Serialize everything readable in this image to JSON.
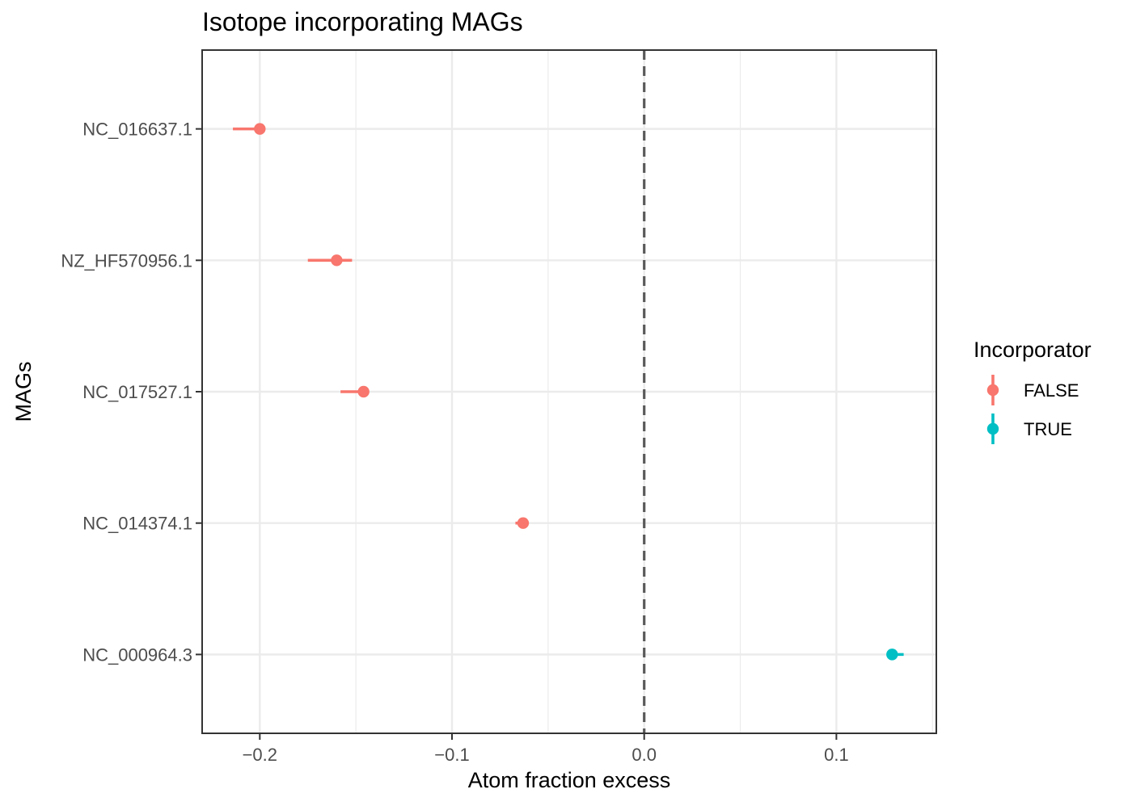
{
  "chart_data": {
    "type": "scatter",
    "title": "Isotope incorporating MAGs",
    "xlabel": "Atom fraction excess",
    "ylabel": "MAGs",
    "xlim": [
      -0.23,
      0.152
    ],
    "x_ticks": [
      -0.2,
      -0.1,
      0.0,
      0.1
    ],
    "x_tick_labels": [
      "−0.2",
      "−0.1",
      "0.0",
      "0.1"
    ],
    "reference_line": {
      "x": 0.0,
      "style": "dashed",
      "color": "#595959"
    },
    "categories": [
      "NC_016637.1",
      "NZ_HF570956.1",
      "NC_017527.1",
      "NC_014374.1",
      "NC_000964.3"
    ],
    "points": [
      {
        "mag": "NC_016637.1",
        "x": -0.2,
        "xmin": -0.214,
        "xmax": -0.199,
        "incorporator": "FALSE"
      },
      {
        "mag": "NZ_HF570956.1",
        "x": -0.16,
        "xmin": -0.175,
        "xmax": -0.152,
        "incorporator": "FALSE"
      },
      {
        "mag": "NC_017527.1",
        "x": -0.146,
        "xmin": -0.158,
        "xmax": -0.144,
        "incorporator": "FALSE"
      },
      {
        "mag": "NC_014374.1",
        "x": -0.063,
        "xmin": -0.067,
        "xmax": -0.061,
        "incorporator": "FALSE"
      },
      {
        "mag": "NC_000964.3",
        "x": 0.129,
        "xmin": 0.127,
        "xmax": 0.135,
        "incorporator": "TRUE"
      }
    ],
    "grid": true,
    "legend": {
      "title": "Incorporator",
      "placement": "right",
      "entries": [
        {
          "label": "FALSE",
          "color": "#F8766D"
        },
        {
          "label": "TRUE",
          "color": "#00BFC4"
        }
      ]
    }
  }
}
